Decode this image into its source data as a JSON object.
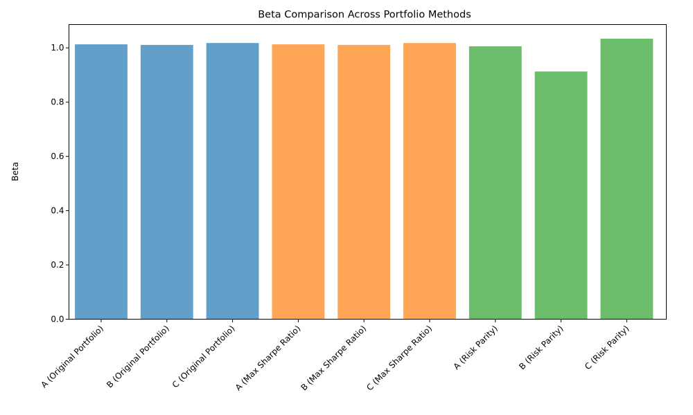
{
  "chart_data": {
    "type": "bar",
    "title": "Beta Comparison Across Portfolio Methods",
    "xlabel": "",
    "ylabel": "Beta",
    "categories": [
      "A (Original Portfolio)",
      "B (Original Portfolio)",
      "C (Original Portfolio)",
      "A (Max Sharpe Ratio)",
      "B (Max Sharpe Ratio)",
      "C (Max Sharpe Ratio)",
      "A (Risk Parity)",
      "B (Risk Parity)",
      "C (Risk Parity)"
    ],
    "values": [
      1.013,
      1.011,
      1.018,
      1.013,
      1.011,
      1.018,
      1.006,
      0.913,
      1.034
    ],
    "bar_colors": [
      "#1f77b4",
      "#1f77b4",
      "#1f77b4",
      "#ff7f0e",
      "#ff7f0e",
      "#ff7f0e",
      "#2ca02c",
      "#2ca02c",
      "#2ca02c"
    ],
    "bar_opacity": 0.7,
    "ylim": [
      0,
      1.086
    ],
    "yticks": [
      0.0,
      0.2,
      0.4,
      0.6,
      0.8,
      1.0
    ],
    "ytick_labels": [
      "0.0",
      "0.2",
      "0.4",
      "0.6",
      "0.8",
      "1.0"
    ],
    "xtick_rotation_deg": 45,
    "grid": false,
    "legend": "none"
  }
}
